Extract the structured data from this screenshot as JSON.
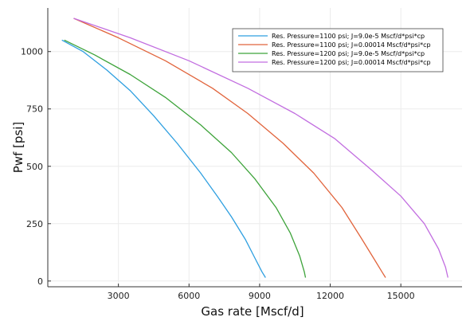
{
  "chart_data": {
    "type": "line",
    "title": "",
    "xlabel": "Gas rate [Mscf/d]",
    "ylabel": "Pwf [psi]",
    "xlim": [
      0,
      17600
    ],
    "ylim": [
      -25,
      1190
    ],
    "xticks": [
      3000,
      6000,
      9000,
      12000,
      15000
    ],
    "yticks": [
      0,
      250,
      500,
      750,
      1000
    ],
    "grid": true,
    "legend_position": "top-right",
    "series": [
      {
        "name": "Res. Pressure=1100 psi; J=9.0e-5 Mscf/d*psi*cp",
        "color": "#2e9fe0",
        "x": [
          600,
          1500,
          2500,
          3500,
          4500,
          5500,
          6500,
          7200,
          7800,
          8400,
          8800,
          9100,
          9250
        ],
        "y": [
          1050,
          1000,
          920,
          830,
          720,
          600,
          470,
          370,
          280,
          180,
          100,
          40,
          15
        ]
      },
      {
        "name": "Res. Pressure=1100 psi; J=0.00014 Mscf/d*psi*cp",
        "color": "#e1643c",
        "x": [
          1100,
          3000,
          5000,
          7000,
          8500,
          10000,
          11300,
          12500,
          13300,
          13900,
          14200,
          14350
        ],
        "y": [
          1145,
          1060,
          960,
          840,
          730,
          600,
          470,
          320,
          190,
          90,
          40,
          15
        ]
      },
      {
        "name": "Res. Pressure=1200 psi; J=9.0e-5 Mscf/d*psi*cp",
        "color": "#3da33a",
        "x": [
          700,
          2000,
          3500,
          5000,
          6500,
          7800,
          8800,
          9700,
          10300,
          10700,
          10900,
          10950
        ],
        "y": [
          1050,
          985,
          900,
          800,
          680,
          560,
          445,
          320,
          210,
          110,
          40,
          15
        ]
      },
      {
        "name": "Res. Pressure=1200 psi; J=0.00014 Mscf/d*psi*cp",
        "color": "#c26ee0",
        "x": [
          1100,
          3500,
          6000,
          8500,
          10500,
          12200,
          13800,
          15000,
          16000,
          16600,
          16900,
          17000
        ],
        "y": [
          1145,
          1060,
          960,
          840,
          730,
          620,
          480,
          370,
          250,
          140,
          60,
          15
        ]
      }
    ]
  }
}
